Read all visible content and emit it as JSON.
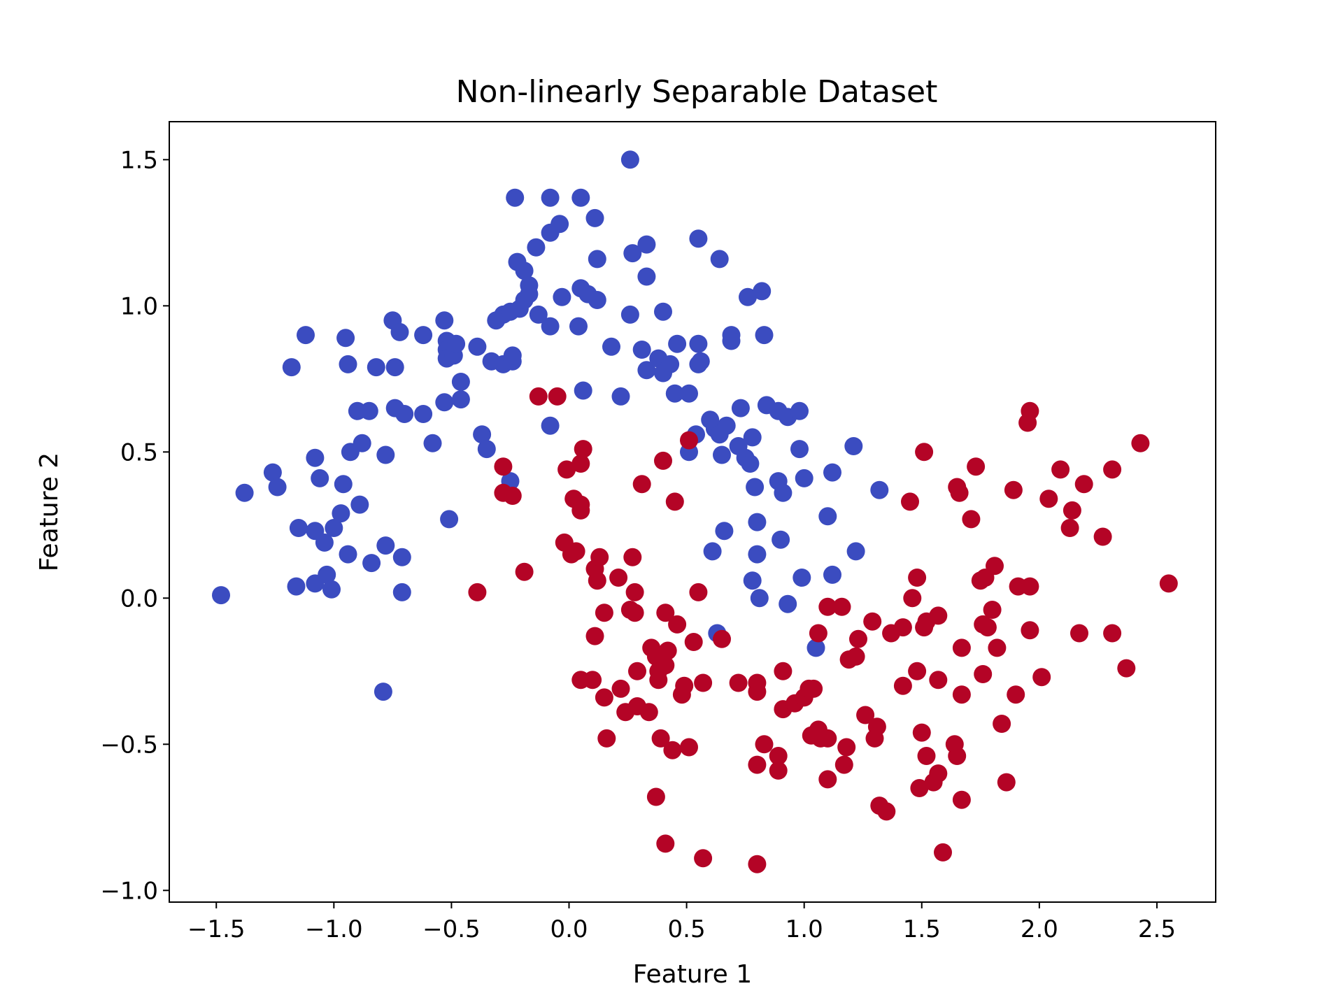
{
  "chart_data": {
    "type": "scatter",
    "title": "Non-linearly Separable  Dataset",
    "xlabel": "Feature 1",
    "ylabel": "Feature 2",
    "xlim": [
      -1.7,
      2.75
    ],
    "ylim": [
      -1.04,
      1.63
    ],
    "xticks": [
      -1.5,
      -1.0,
      -0.5,
      0.0,
      0.5,
      1.0,
      1.5,
      2.0,
      2.5
    ],
    "yticks": [
      -1.0,
      -0.5,
      0.0,
      0.5,
      1.0,
      1.5
    ],
    "xtick_labels": [
      "−1.5",
      "−1.0",
      "−0.5",
      "0.0",
      "0.5",
      "1.0",
      "1.5",
      "2.0",
      "2.5"
    ],
    "ytick_labels": [
      "−1.0",
      "−0.5",
      "0.0",
      "0.5",
      "1.0",
      "1.5"
    ],
    "grid": false,
    "series": [
      {
        "color": "#3b4cc0",
        "points": [
          [
            -1.48,
            0.01
          ],
          [
            -1.38,
            0.36
          ],
          [
            -1.26,
            0.43
          ],
          [
            -1.24,
            0.38
          ],
          [
            -1.18,
            0.79
          ],
          [
            -1.16,
            0.04
          ],
          [
            -1.15,
            0.24
          ],
          [
            -1.12,
            0.9
          ],
          [
            -1.08,
            0.48
          ],
          [
            -1.08,
            0.23
          ],
          [
            -1.08,
            0.05
          ],
          [
            -1.06,
            0.41
          ],
          [
            -1.04,
            0.19
          ],
          [
            -1.03,
            0.08
          ],
          [
            -1.01,
            0.03
          ],
          [
            -1.0,
            0.24
          ],
          [
            -0.97,
            0.29
          ],
          [
            -0.96,
            0.39
          ],
          [
            -0.95,
            0.89
          ],
          [
            -0.94,
            0.8
          ],
          [
            -0.94,
            0.15
          ],
          [
            -0.93,
            0.5
          ],
          [
            -0.9,
            0.64
          ],
          [
            -0.89,
            0.32
          ],
          [
            -0.88,
            0.53
          ],
          [
            -0.85,
            0.64
          ],
          [
            -0.84,
            0.12
          ],
          [
            -0.82,
            0.79
          ],
          [
            -0.78,
            0.49
          ],
          [
            -0.78,
            0.18
          ],
          [
            -0.75,
            0.95
          ],
          [
            -0.74,
            0.79
          ],
          [
            -0.74,
            0.65
          ],
          [
            -0.72,
            0.91
          ],
          [
            -0.71,
            0.14
          ],
          [
            -0.71,
            0.02
          ],
          [
            -0.7,
            0.63
          ],
          [
            -0.79,
            -0.32
          ],
          [
            -0.62,
            0.9
          ],
          [
            -0.62,
            0.63
          ],
          [
            -0.58,
            0.53
          ],
          [
            -0.53,
            0.95
          ],
          [
            -0.53,
            0.67
          ],
          [
            -0.52,
            0.88
          ],
          [
            -0.52,
            0.85
          ],
          [
            -0.51,
            0.27
          ],
          [
            -0.52,
            0.82
          ],
          [
            -0.49,
            0.83
          ],
          [
            -0.48,
            0.87
          ],
          [
            -0.46,
            0.74
          ],
          [
            -0.46,
            0.68
          ],
          [
            -0.39,
            0.86
          ],
          [
            -0.37,
            0.56
          ],
          [
            -0.35,
            0.51
          ],
          [
            -0.33,
            0.81
          ],
          [
            -0.31,
            0.95
          ],
          [
            -0.28,
            0.97
          ],
          [
            -0.28,
            0.8
          ],
          [
            -0.25,
            0.98
          ],
          [
            -0.24,
            0.81
          ],
          [
            -0.24,
            0.83
          ],
          [
            -0.25,
            0.4
          ],
          [
            -0.23,
            1.37
          ],
          [
            -0.22,
            1.15
          ],
          [
            -0.21,
            0.99
          ],
          [
            -0.19,
            1.12
          ],
          [
            -0.19,
            1.02
          ],
          [
            -0.17,
            1.07
          ],
          [
            -0.17,
            1.04
          ],
          [
            -0.14,
            1.2
          ],
          [
            -0.13,
            0.97
          ],
          [
            -0.08,
            1.37
          ],
          [
            -0.08,
            1.25
          ],
          [
            -0.08,
            0.93
          ],
          [
            -0.08,
            0.59
          ],
          [
            -0.04,
            1.28
          ],
          [
            -0.03,
            1.03
          ],
          [
            0.05,
            1.37
          ],
          [
            0.05,
            1.06
          ],
          [
            0.04,
            0.93
          ],
          [
            0.06,
            0.71
          ],
          [
            0.08,
            1.04
          ],
          [
            0.11,
            1.3
          ],
          [
            0.12,
            1.16
          ],
          [
            0.12,
            1.02
          ],
          [
            0.18,
            0.86
          ],
          [
            0.22,
            0.69
          ],
          [
            0.26,
            1.5
          ],
          [
            0.26,
            0.97
          ],
          [
            0.27,
            1.18
          ],
          [
            0.31,
            0.85
          ],
          [
            0.33,
            1.21
          ],
          [
            0.33,
            1.1
          ],
          [
            0.33,
            0.78
          ],
          [
            0.38,
            0.82
          ],
          [
            0.4,
            0.98
          ],
          [
            0.4,
            0.77
          ],
          [
            0.43,
            0.8
          ],
          [
            0.45,
            0.7
          ],
          [
            0.46,
            0.87
          ],
          [
            0.51,
            0.7
          ],
          [
            0.55,
            1.23
          ],
          [
            0.55,
            0.87
          ],
          [
            0.55,
            0.8
          ],
          [
            0.56,
            0.81
          ],
          [
            0.51,
            0.5
          ],
          [
            0.54,
            0.56
          ],
          [
            0.6,
            0.61
          ],
          [
            0.61,
            0.16
          ],
          [
            0.63,
            -0.12
          ],
          [
            0.62,
            0.58
          ],
          [
            0.64,
            1.16
          ],
          [
            0.64,
            0.56
          ],
          [
            0.65,
            0.49
          ],
          [
            0.66,
            0.23
          ],
          [
            0.67,
            0.59
          ],
          [
            0.69,
            0.9
          ],
          [
            0.69,
            0.88
          ],
          [
            0.72,
            0.52
          ],
          [
            0.73,
            0.65
          ],
          [
            0.75,
            0.48
          ],
          [
            0.76,
            1.03
          ],
          [
            0.77,
            0.46
          ],
          [
            0.78,
            0.06
          ],
          [
            0.78,
            0.55
          ],
          [
            0.79,
            0.38
          ],
          [
            0.8,
            0.15
          ],
          [
            0.8,
            0.26
          ],
          [
            0.81,
            0.0
          ],
          [
            0.82,
            1.05
          ],
          [
            0.83,
            0.9
          ],
          [
            0.84,
            0.66
          ],
          [
            0.89,
            0.64
          ],
          [
            0.89,
            0.4
          ],
          [
            0.9,
            0.2
          ],
          [
            0.91,
            0.36
          ],
          [
            0.93,
            0.62
          ],
          [
            0.93,
            -0.02
          ],
          [
            0.98,
            0.64
          ],
          [
            0.98,
            0.51
          ],
          [
            0.99,
            0.07
          ],
          [
            1.0,
            0.41
          ],
          [
            1.05,
            -0.17
          ],
          [
            1.1,
            0.28
          ],
          [
            1.12,
            0.43
          ],
          [
            1.12,
            0.08
          ],
          [
            1.21,
            0.52
          ],
          [
            1.22,
            0.16
          ],
          [
            1.32,
            0.37
          ]
        ]
      },
      {
        "color": "#b40426",
        "points": [
          [
            -0.39,
            0.02
          ],
          [
            -0.28,
            0.45
          ],
          [
            -0.28,
            0.36
          ],
          [
            -0.24,
            0.35
          ],
          [
            -0.19,
            0.09
          ],
          [
            -0.13,
            0.69
          ],
          [
            -0.05,
            0.69
          ],
          [
            -0.02,
            0.19
          ],
          [
            -0.01,
            0.44
          ],
          [
            0.01,
            0.15
          ],
          [
            0.02,
            0.34
          ],
          [
            0.03,
            0.16
          ],
          [
            0.05,
            0.32
          ],
          [
            0.05,
            0.3
          ],
          [
            0.05,
            0.46
          ],
          [
            0.06,
            0.51
          ],
          [
            0.05,
            -0.28
          ],
          [
            0.1,
            -0.28
          ],
          [
            0.11,
            -0.13
          ],
          [
            0.11,
            0.1
          ],
          [
            0.12,
            0.06
          ],
          [
            0.13,
            0.14
          ],
          [
            0.15,
            -0.05
          ],
          [
            0.15,
            -0.34
          ],
          [
            0.16,
            -0.48
          ],
          [
            0.21,
            0.07
          ],
          [
            0.22,
            -0.31
          ],
          [
            0.24,
            -0.39
          ],
          [
            0.26,
            -0.04
          ],
          [
            0.27,
            0.14
          ],
          [
            0.28,
            0.02
          ],
          [
            0.28,
            -0.05
          ],
          [
            0.29,
            -0.25
          ],
          [
            0.29,
            -0.37
          ],
          [
            0.31,
            0.39
          ],
          [
            0.34,
            -0.39
          ],
          [
            0.35,
            -0.17
          ],
          [
            0.37,
            -0.2
          ],
          [
            0.38,
            -0.28
          ],
          [
            0.38,
            -0.25
          ],
          [
            0.39,
            -0.48
          ],
          [
            0.4,
            0.47
          ],
          [
            0.41,
            -0.23
          ],
          [
            0.42,
            -0.18
          ],
          [
            0.41,
            -0.05
          ],
          [
            0.44,
            -0.52
          ],
          [
            0.45,
            0.33
          ],
          [
            0.46,
            -0.09
          ],
          [
            0.48,
            -0.33
          ],
          [
            0.49,
            -0.3
          ],
          [
            0.51,
            -0.51
          ],
          [
            0.51,
            0.54
          ],
          [
            0.53,
            -0.15
          ],
          [
            0.55,
            0.02
          ],
          [
            0.57,
            -0.29
          ],
          [
            0.57,
            -0.89
          ],
          [
            0.37,
            -0.68
          ],
          [
            0.41,
            -0.84
          ],
          [
            0.65,
            -0.14
          ],
          [
            0.72,
            -0.29
          ],
          [
            0.8,
            -0.29
          ],
          [
            0.8,
            -0.32
          ],
          [
            0.8,
            -0.57
          ],
          [
            0.8,
            -0.91
          ],
          [
            0.83,
            -0.5
          ],
          [
            0.89,
            -0.54
          ],
          [
            0.89,
            -0.59
          ],
          [
            0.91,
            -0.25
          ],
          [
            0.91,
            -0.38
          ],
          [
            0.96,
            -0.36
          ],
          [
            1.0,
            -0.34
          ],
          [
            1.02,
            -0.31
          ],
          [
            1.03,
            -0.47
          ],
          [
            1.04,
            -0.31
          ],
          [
            1.06,
            -0.45
          ],
          [
            1.07,
            -0.48
          ],
          [
            1.06,
            -0.12
          ],
          [
            1.1,
            -0.03
          ],
          [
            1.1,
            -0.48
          ],
          [
            1.1,
            -0.62
          ],
          [
            1.16,
            -0.03
          ],
          [
            1.17,
            -0.57
          ],
          [
            1.18,
            -0.51
          ],
          [
            1.19,
            -0.21
          ],
          [
            1.22,
            -0.2
          ],
          [
            1.23,
            -0.14
          ],
          [
            1.26,
            -0.4
          ],
          [
            1.29,
            -0.08
          ],
          [
            1.3,
            -0.48
          ],
          [
            1.31,
            -0.44
          ],
          [
            1.32,
            -0.71
          ],
          [
            1.35,
            -0.73
          ],
          [
            1.37,
            -0.12
          ],
          [
            1.42,
            -0.1
          ],
          [
            1.42,
            -0.3
          ],
          [
            1.45,
            0.33
          ],
          [
            1.46,
            0.0
          ],
          [
            1.48,
            0.07
          ],
          [
            1.48,
            -0.25
          ],
          [
            1.49,
            -0.65
          ],
          [
            1.5,
            -0.46
          ],
          [
            1.51,
            -0.1
          ],
          [
            1.52,
            -0.08
          ],
          [
            1.52,
            -0.54
          ],
          [
            1.55,
            -0.63
          ],
          [
            1.57,
            -0.06
          ],
          [
            1.57,
            -0.28
          ],
          [
            1.57,
            -0.6
          ],
          [
            1.59,
            -0.87
          ],
          [
            1.51,
            0.5
          ],
          [
            1.64,
            -0.5
          ],
          [
            1.65,
            -0.54
          ],
          [
            1.65,
            0.38
          ],
          [
            1.66,
            0.36
          ],
          [
            1.67,
            -0.33
          ],
          [
            1.67,
            -0.17
          ],
          [
            1.67,
            -0.69
          ],
          [
            1.71,
            0.27
          ],
          [
            1.73,
            0.45
          ],
          [
            1.75,
            0.06
          ],
          [
            1.76,
            -0.09
          ],
          [
            1.76,
            -0.26
          ],
          [
            1.77,
            0.07
          ],
          [
            1.78,
            -0.1
          ],
          [
            1.8,
            -0.04
          ],
          [
            1.81,
            0.11
          ],
          [
            1.82,
            -0.17
          ],
          [
            1.84,
            -0.43
          ],
          [
            1.86,
            -0.63
          ],
          [
            1.89,
            0.37
          ],
          [
            1.9,
            -0.33
          ],
          [
            1.91,
            0.04
          ],
          [
            1.95,
            0.6
          ],
          [
            1.96,
            0.64
          ],
          [
            1.96,
            0.04
          ],
          [
            1.96,
            -0.11
          ],
          [
            2.01,
            -0.27
          ],
          [
            2.04,
            0.34
          ],
          [
            2.09,
            0.44
          ],
          [
            2.13,
            0.24
          ],
          [
            2.14,
            0.3
          ],
          [
            2.17,
            -0.12
          ],
          [
            2.19,
            0.39
          ],
          [
            2.27,
            0.21
          ],
          [
            2.31,
            0.44
          ],
          [
            2.31,
            -0.12
          ],
          [
            2.37,
            -0.24
          ],
          [
            2.43,
            0.53
          ],
          [
            2.55,
            0.05
          ]
        ]
      }
    ]
  }
}
